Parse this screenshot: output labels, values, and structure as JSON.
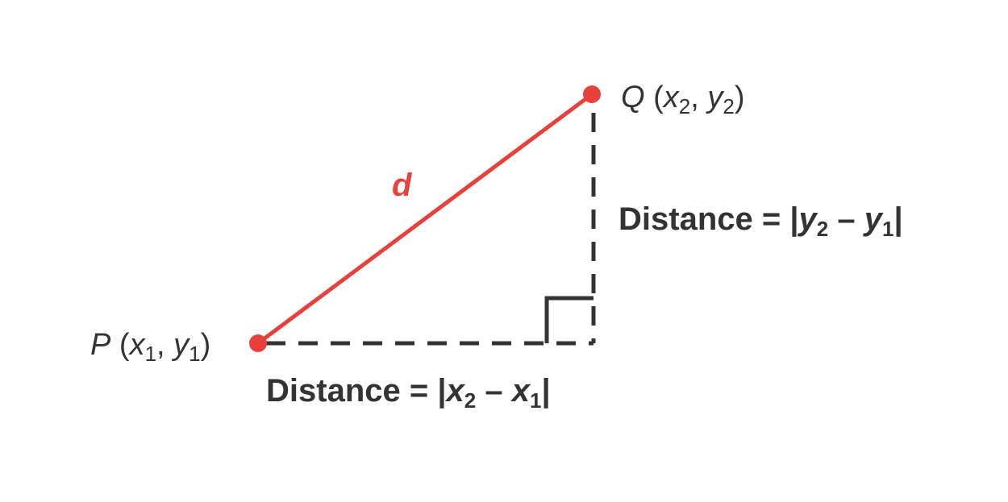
{
  "colors": {
    "segment": "#e8413c",
    "guides": "#333333",
    "text": "#333333",
    "background": "#ffffff"
  },
  "segment_label": "d",
  "point_p": {
    "name": "P",
    "x_var": "x",
    "x_sub": "1",
    "y_var": "y",
    "y_sub": "1"
  },
  "point_q": {
    "name": "Q",
    "x_var": "x",
    "x_sub": "2",
    "y_var": "y",
    "y_sub": "2"
  },
  "horizontal_distance": {
    "prefix": "Distance = |",
    "a_var": "x",
    "a_sub": "2",
    "minus": " – ",
    "b_var": "x",
    "b_sub": "1",
    "suffix": "|"
  },
  "vertical_distance": {
    "prefix": "Distance = |",
    "a_var": "y",
    "a_sub": "2",
    "minus": " – ",
    "b_var": "y",
    "b_sub": "1",
    "suffix": "|"
  }
}
